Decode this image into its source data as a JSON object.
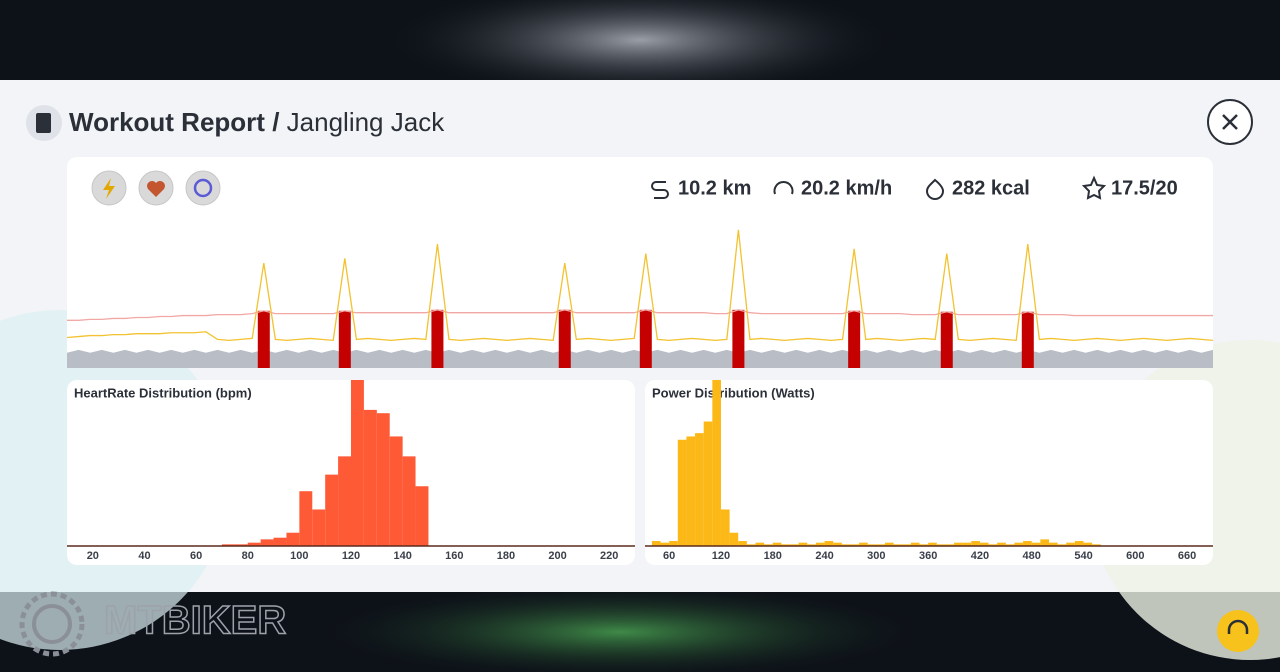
{
  "header": {
    "title": "Workout Report",
    "separator": "/",
    "subtitle": "Jangling Jack"
  },
  "stats": [
    "10.2 km",
    "20.2 km/h",
    "282 kcal",
    "17.5/20"
  ],
  "timeline": {
    "type": "line",
    "ylim": [
      0,
      150
    ],
    "highlight_color": "#c40000",
    "highlights": [
      17,
      24,
      32,
      43,
      50,
      58,
      68,
      76,
      83
    ],
    "series": [
      {
        "color": "#b9bdc5",
        "style": "area",
        "values": [
          16,
          19,
          16,
          19,
          16,
          19,
          16,
          19,
          16,
          19,
          16,
          19,
          16,
          19,
          16,
          19,
          16,
          19,
          16,
          19,
          16,
          19,
          16,
          19,
          16,
          19,
          16,
          19,
          16,
          19,
          16,
          19,
          16,
          19,
          16,
          19,
          16,
          19,
          16,
          19,
          16,
          19,
          16,
          19,
          16,
          19,
          16,
          19,
          16,
          19,
          16,
          19,
          16,
          19,
          16,
          19,
          16,
          19,
          16,
          19,
          16,
          19,
          16,
          19,
          16,
          19,
          16,
          19,
          16,
          19,
          16,
          19,
          16,
          19,
          16,
          19,
          16,
          19,
          16,
          19,
          16,
          19,
          16,
          19,
          16,
          19,
          16,
          19,
          16,
          19,
          16,
          19,
          16,
          19,
          16,
          19,
          16,
          19,
          16,
          19
        ]
      },
      {
        "color": "#f1a8a4",
        "style": "line",
        "values": [
          50,
          50,
          51,
          51,
          52,
          52,
          53,
          53,
          54,
          54,
          55,
          55,
          55,
          56,
          56,
          56,
          57,
          60,
          57,
          57,
          57,
          57,
          57,
          57,
          60,
          58,
          58,
          58,
          58,
          58,
          58,
          58,
          61,
          58,
          58,
          58,
          58,
          58,
          58,
          58,
          58,
          58,
          58,
          61,
          58,
          58,
          58,
          58,
          58,
          58,
          61,
          58,
          58,
          58,
          58,
          58,
          57,
          57,
          61,
          58,
          57,
          57,
          57,
          57,
          57,
          57,
          57,
          57,
          60,
          57,
          57,
          57,
          57,
          56,
          56,
          56,
          59,
          56,
          56,
          56,
          56,
          56,
          56,
          59,
          56,
          56,
          56,
          55,
          55,
          55,
          55,
          55,
          55,
          55,
          55,
          55,
          55,
          55,
          55,
          55
        ]
      },
      {
        "color": "#f2c230",
        "style": "line",
        "values": [
          32,
          33,
          34,
          34,
          35,
          35,
          36,
          36,
          36,
          37,
          37,
          37,
          38,
          30,
          29,
          30,
          31,
          110,
          30,
          29,
          30,
          31,
          30,
          29,
          115,
          30,
          31,
          30,
          29,
          30,
          31,
          30,
          130,
          30,
          29,
          30,
          31,
          30,
          29,
          30,
          31,
          30,
          29,
          110,
          30,
          31,
          30,
          29,
          30,
          31,
          120,
          30,
          29,
          30,
          31,
          30,
          29,
          30,
          145,
          30,
          31,
          30,
          29,
          30,
          31,
          30,
          29,
          30,
          125,
          30,
          31,
          30,
          29,
          30,
          31,
          30,
          120,
          30,
          29,
          30,
          31,
          30,
          29,
          130,
          30,
          31,
          30,
          29,
          30,
          31,
          30,
          29,
          30,
          31,
          30,
          29,
          30,
          31,
          30,
          29
        ]
      }
    ]
  },
  "charts": [
    {
      "type": "histogram",
      "title": "HeartRate Distribution (bpm)",
      "color": "#ff5a36",
      "xlim": [
        10,
        230
      ],
      "xticks": [
        20,
        40,
        60,
        80,
        100,
        120,
        140,
        160,
        180,
        200,
        220
      ],
      "ylim": [
        0,
        100
      ],
      "bins": [
        70,
        75,
        80,
        85,
        90,
        95,
        100,
        105,
        110,
        115,
        120,
        125,
        130,
        135,
        140,
        145,
        150
      ],
      "values": [
        1,
        1,
        2,
        4,
        5,
        8,
        33,
        22,
        43,
        54,
        100,
        82,
        80,
        66,
        54,
        36
      ]
    },
    {
      "type": "histogram",
      "title": "Power Distribution (Watts)",
      "color": "#fbb817",
      "xlim": [
        32,
        690
      ],
      "xticks": [
        60,
        120,
        180,
        240,
        300,
        360,
        420,
        480,
        540,
        600,
        660
      ],
      "ylim": [
        0,
        100
      ],
      "bins": [
        40,
        50,
        60,
        70,
        80,
        90,
        100,
        110,
        120,
        130,
        140,
        150,
        160,
        170,
        180,
        190,
        200,
        210,
        220,
        230,
        240,
        250,
        260,
        270,
        280,
        290,
        300,
        310,
        320,
        330,
        340,
        350,
        360,
        370,
        380,
        390,
        400,
        410,
        420,
        430,
        440,
        450,
        460,
        470,
        480,
        490,
        500,
        510,
        520,
        530,
        540,
        550,
        560
      ],
      "values": [
        3,
        2,
        3,
        64,
        66,
        68,
        75,
        100,
        22,
        8,
        3,
        1,
        2,
        1,
        2,
        1,
        1,
        2,
        1,
        2,
        3,
        2,
        1,
        1,
        2,
        1,
        1,
        2,
        1,
        1,
        2,
        1,
        2,
        1,
        1,
        2,
        2,
        3,
        2,
        1,
        2,
        1,
        2,
        3,
        2,
        4,
        2,
        1,
        2,
        3,
        2,
        1
      ]
    }
  ],
  "brand": "MTBIKER"
}
